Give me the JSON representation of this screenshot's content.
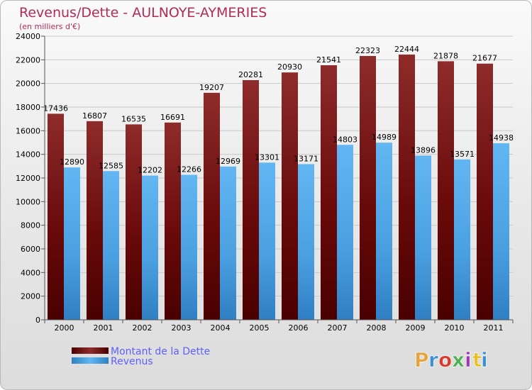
{
  "colors": {
    "series_dette": "#7a0000",
    "series_revenus": "#4fa6e6",
    "title": "#b22a57",
    "legend_text": "#5f5fff"
  },
  "logo": {
    "letters": [
      "P",
      "r",
      "o",
      "x",
      "i",
      "t",
      "i"
    ],
    "colors": [
      "#e8a23a",
      "#3a8fd6",
      "#d93a2b",
      "#4caf50",
      "#9c3ab0",
      "#e8c12a",
      "#3a8fd6"
    ]
  },
  "chart_data": {
    "type": "bar",
    "title": "Revenus/Dette - AULNOYE-AYMERIES",
    "subtitle": "(en milliers d'€)",
    "xlabel": "",
    "ylabel": "",
    "ylim": [
      0,
      24000
    ],
    "yticks": [
      0,
      2000,
      4000,
      6000,
      8000,
      10000,
      12000,
      14000,
      16000,
      18000,
      20000,
      22000,
      24000
    ],
    "grid": true,
    "categories": [
      "2000",
      "2001",
      "2002",
      "2003",
      "2004",
      "2005",
      "2006",
      "2007",
      "2008",
      "2009",
      "2010",
      "2011"
    ],
    "series": [
      {
        "name": "Montant de la Dette",
        "values": [
          17436,
          16807,
          16535,
          16691,
          19207,
          20281,
          20930,
          21541,
          22323,
          22444,
          21878,
          21677
        ],
        "labels": [
          "17436",
          "16807",
          "16535",
          "16691",
          "19207",
          "20281",
          "20930",
          "21541",
          "22323",
          "22444",
          "21878",
          "21677"
        ]
      },
      {
        "name": "Revenus",
        "values": [
          12890,
          12585,
          12202,
          12266,
          12969,
          13301,
          13171,
          14803,
          14989,
          13896,
          13571,
          14938
        ],
        "labels": [
          "12890",
          "12585",
          "12202",
          "12266",
          "12969",
          "13301",
          "13171",
          "14803",
          "14989",
          "13896",
          "13571",
          "14938"
        ]
      }
    ],
    "legend": "bottom-left"
  }
}
